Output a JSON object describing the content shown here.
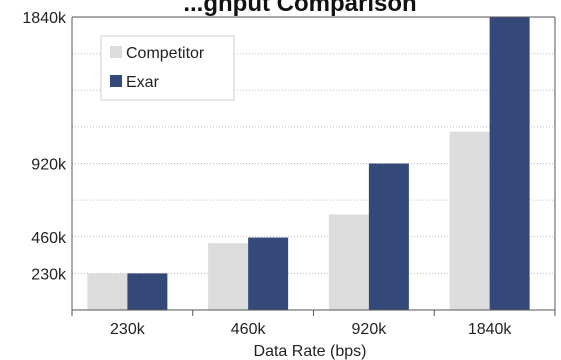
{
  "chart_data": {
    "type": "bar",
    "title": "...ghput Comparison",
    "xlabel": "Data Rate (bps)",
    "ylabel": "",
    "categories": [
      "230k",
      "460k",
      "920k",
      "1840k"
    ],
    "series": [
      {
        "name": "Competitor",
        "color": "#dcdcdc",
        "values": [
          230,
          420,
          600,
          1120
        ]
      },
      {
        "name": "Exar",
        "color": "#34497a",
        "values": [
          230,
          455,
          920,
          1840
        ]
      }
    ],
    "yticks": [
      230,
      460,
      920,
      1840
    ],
    "ytick_labels": [
      "230k",
      "460k",
      "920k",
      "1840k"
    ],
    "ylim": [
      0,
      1840
    ],
    "grid": true,
    "legend_position": "top-left"
  }
}
